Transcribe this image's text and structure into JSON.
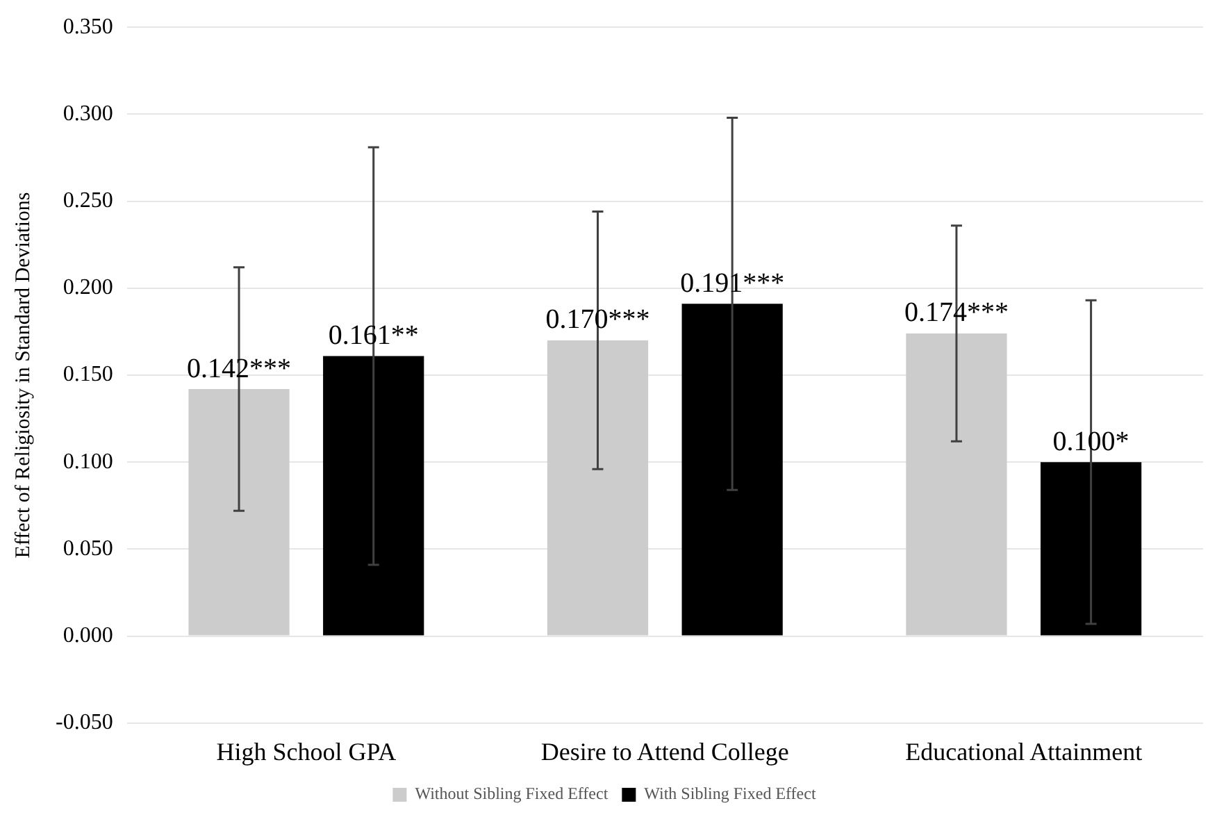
{
  "chart_data": {
    "type": "bar",
    "ylabel": "Effect of Religiosity in Standard Deviations",
    "categories": [
      "High School GPA",
      "Desire to Attend College",
      "Educational Attainment"
    ],
    "series": [
      {
        "name": "Without Sibling Fixed Effect",
        "color": "#cccccc",
        "values": [
          0.142,
          0.17,
          0.174
        ],
        "errors": [
          0.07,
          0.074,
          0.062
        ],
        "value_labels": [
          "0.142***",
          "0.170***",
          "0.174***"
        ]
      },
      {
        "name": "With Sibling Fixed Effect",
        "color": "#000000",
        "values": [
          0.161,
          0.191,
          0.1
        ],
        "errors": [
          0.12,
          0.107,
          0.093
        ],
        "value_labels": [
          "0.161**",
          "0.191***",
          "0.100*"
        ]
      }
    ],
    "ylim": [
      -0.05,
      0.35
    ],
    "yticks": [
      {
        "value": -0.05,
        "label": "-0.050"
      },
      {
        "value": 0,
        "label": "0.000"
      },
      {
        "value": 0.05,
        "label": "0.050"
      },
      {
        "value": 0.1,
        "label": "0.100"
      },
      {
        "value": 0.15,
        "label": "0.150"
      },
      {
        "value": 0.2,
        "label": "0.200"
      },
      {
        "value": 0.25,
        "label": "0.250"
      },
      {
        "value": 0.3,
        "label": "0.300"
      },
      {
        "value": 0.35,
        "label": "0.350"
      }
    ],
    "grid": "y",
    "legend": "bottom"
  }
}
